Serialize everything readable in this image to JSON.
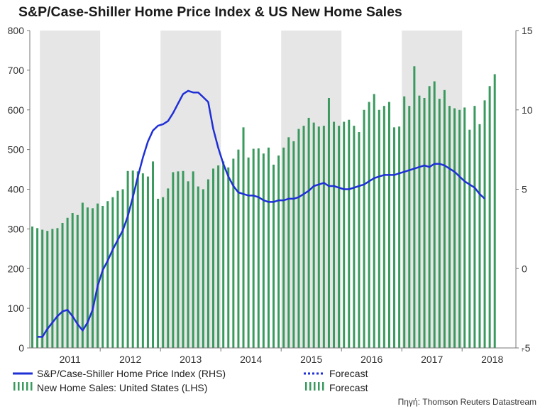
{
  "chart_data": {
    "type": "bar",
    "title": "S&P/Case-Shiller Home Price Index & US New Home Sales",
    "source": "Πηγή: Thomson Reuters Datastream",
    "x_labels": [
      "2011",
      "2012",
      "2013",
      "2014",
      "2015",
      "2016",
      "2017",
      "2018"
    ],
    "y_left": {
      "min": 0,
      "max": 800,
      "ticks": [
        "0",
        "100",
        "200",
        "300",
        "400",
        "500",
        "600",
        "700",
        "800"
      ]
    },
    "y_right": {
      "min": -5,
      "max": 15,
      "ticks": [
        "-5",
        "0",
        "5",
        "10",
        "15"
      ]
    },
    "shaded_years": [
      "2011",
      "2013",
      "2015",
      "2017"
    ],
    "grid": false,
    "legend": [
      {
        "label": "S&P/Case-Shiller Home Price Index (RHS)",
        "color": "#1f2fd6"
      },
      {
        "label": "Forecast",
        "color": "#1f2fd6",
        "style": "dotted"
      },
      {
        "label": "New Home Sales: United States (LHS)",
        "color": "#3a9a5e"
      },
      {
        "label": "Forecast",
        "color": "#3a9a5e",
        "style": "dotted-bars"
      }
    ],
    "series": [
      {
        "name": "New Home Sales: United States (LHS)",
        "axis": "left",
        "type": "bar",
        "color": "#3a9a5e",
        "start": "2010-11",
        "values": [
          306,
          302,
          298,
          295,
          300,
          302,
          315,
          328,
          340,
          335,
          366,
          354,
          352,
          364,
          358,
          370,
          380,
          396,
          400,
          446,
          447,
          445,
          440,
          432,
          470,
          376,
          380,
          402,
          443,
          445,
          446,
          420,
          445,
          407,
          400,
          425,
          452,
          460,
          470,
          455,
          477,
          500,
          556,
          480,
          502,
          503,
          490,
          505,
          462,
          485,
          505,
          531,
          521,
          552,
          560,
          580,
          568,
          558,
          560,
          630,
          570,
          560,
          570,
          575,
          560,
          544,
          600,
          620,
          640,
          600,
          610,
          620,
          556,
          558,
          634,
          610,
          710,
          636,
          630,
          660,
          672,
          628,
          650,
          610,
          604,
          600,
          606,
          550,
          610,
          564,
          624,
          660,
          690
        ]
      },
      {
        "name": "S&P/Case-Shiller Home Price Index (RHS)",
        "axis": "right",
        "type": "line",
        "color": "#1f2fd6",
        "start": "2010-12",
        "values": [
          -4.3,
          -4.3,
          -3.8,
          -3.4,
          -3.0,
          -2.7,
          -2.6,
          -3.0,
          -3.5,
          -3.9,
          -3.4,
          -2.6,
          -1.1,
          -0.1,
          0.5,
          1.2,
          1.8,
          2.4,
          3.3,
          4.5,
          5.8,
          7.0,
          8.0,
          8.7,
          9.0,
          9.1,
          9.3,
          9.8,
          10.4,
          11.0,
          11.2,
          11.1,
          11.1,
          10.8,
          10.5,
          8.8,
          7.6,
          6.6,
          5.8,
          5.2,
          4.8,
          4.7,
          4.6,
          4.6,
          4.5,
          4.3,
          4.2,
          4.2,
          4.3,
          4.3,
          4.4,
          4.4,
          4.5,
          4.7,
          4.9,
          5.2,
          5.3,
          5.4,
          5.2,
          5.2,
          5.1,
          5.0,
          5.0,
          5.1,
          5.2,
          5.3,
          5.5,
          5.7,
          5.8,
          5.9,
          5.9,
          5.9,
          6.0,
          6.1,
          6.2,
          6.3,
          6.4,
          6.5,
          6.4,
          6.6,
          6.6,
          6.5,
          6.3,
          6.1,
          5.8,
          5.5,
          5.3,
          5.1,
          4.7,
          4.4
        ]
      }
    ]
  }
}
